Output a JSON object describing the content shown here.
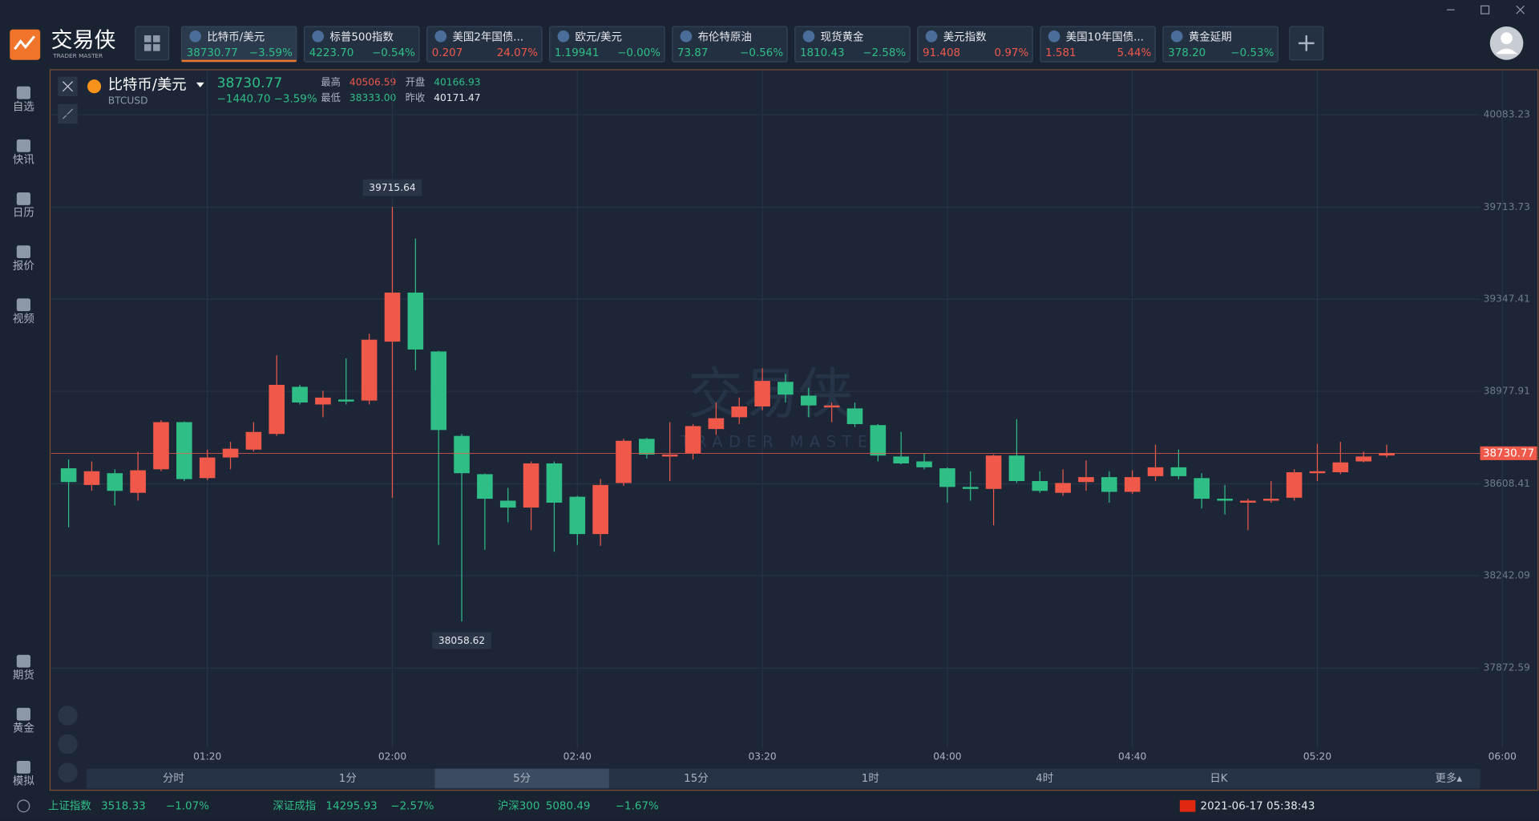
{
  "app": {
    "logo": "交易侠",
    "logo_sub": "TRADER MASTER"
  },
  "tickers": [
    {
      "name": "比特币/美元",
      "price": "38730.77",
      "change": "−3.59%",
      "color": "#2fbf86"
    },
    {
      "name": "标普500指数",
      "price": "4223.70",
      "change": "−0.54%",
      "color": "#2fbf86"
    },
    {
      "name": "美国2年国债...",
      "price": "0.207",
      "change": "24.07%",
      "color": "#f0584a"
    },
    {
      "name": "欧元/美元",
      "price": "1.19941",
      "change": "−0.00%",
      "color": "#2fbf86"
    },
    {
      "name": "布伦特原油",
      "price": "73.87",
      "change": "−0.56%",
      "color": "#2fbf86"
    },
    {
      "name": "现货黄金",
      "price": "1810.43",
      "change": "−2.58%",
      "color": "#2fbf86"
    },
    {
      "name": "美元指数",
      "price": "91.408",
      "change": "0.97%",
      "color": "#f0584a"
    },
    {
      "name": "美国10年国债...",
      "price": "1.581",
      "change": "5.44%",
      "color": "#f0584a"
    },
    {
      "name": "黄金延期",
      "price": "378.20",
      "change": "−0.53%",
      "color": "#2fbf86"
    }
  ],
  "sidebar_top": [
    "自选",
    "快讯",
    "日历",
    "报价",
    "视频"
  ],
  "sidebar_bottom": [
    "期货",
    "黄金",
    "模拟"
  ],
  "chart_header": {
    "name": "比特币/美元",
    "code": "BTCUSD",
    "price": "38730.77",
    "change": "−1440.70",
    "change_pct": "−3.59%",
    "stats": [
      {
        "label": "最高",
        "value": "40506.59",
        "color": "#f0584a"
      },
      {
        "label": "开盘",
        "value": "40166.93",
        "color": "#2fbf86"
      },
      {
        "label": "最低",
        "value": "38333.00",
        "color": "#2fbf86"
      },
      {
        "label": "昨收",
        "value": "40171.47",
        "color": "#e6e9ef"
      }
    ]
  },
  "chart_data": {
    "type": "candlestick",
    "watermark": "交易侠",
    "watermark_sub": "TRADER MASTER",
    "open": [
      38670.7,
      38604,
      38651.1,
      38572.7,
      38666.8,
      38855.1,
      38631.5,
      38713.9,
      38745.3,
      38808,
      38996.3,
      38925.7,
      38945.3,
      38941.4,
      39176.8,
      39372.9,
      39137.6,
      38800.2,
      38647.2,
      38541.3,
      38513.8,
      38690.3,
      38557,
      38407.9,
      38611.9,
      38788.4,
      38717.8,
      38729.6,
      38827.6,
      38874.7,
      38917.9,
      39016,
      38961,
      38914,
      38910,
      38843.3,
      38717.8,
      38698.2,
      38670.7,
      38596.2,
      38588.3,
      38721.7,
      38619.7,
      38572.7,
      38615.8,
      38635.4,
      38576.6,
      38639.3,
      38674.7,
      38631.5,
      38549.1,
      38533.4,
      38541.3,
      38553,
      38651.1,
      38655,
      38698.2,
      38721.7
    ],
    "high": [
      38706,
      38698.2,
      38666.8,
      38737.4,
      38863,
      38858,
      38745.3,
      38776.7,
      38855.1,
      39121.9,
      39004.2,
      38980.6,
      39110.1,
      39208.2,
      39715.64,
      39588.7,
      39140,
      38808,
      38650,
      38592.3,
      38698.2,
      38698.2,
      38561,
      38627.6,
      38788.4,
      38792.3,
      38855.1,
      38847.3,
      38933.6,
      38953.2,
      39070.9,
      39047.3,
      38992.4,
      38933.6,
      38933.6,
      38847.3,
      38815.9,
      38729.6,
      38674.7,
      38659,
      38725.7,
      38866.9,
      38659,
      38666.8,
      38702.1,
      38659,
      38662.9,
      38764.9,
      38745.3,
      38651.1,
      38604,
      38549.1,
      38619.7,
      38666.8,
      38768.8,
      38776.7,
      38737.4,
      38764.9
    ],
    "low": [
      38435.3,
      38580.5,
      38521.7,
      38541.3,
      38659,
      38619.7,
      38623.7,
      38666.8,
      38737.4,
      38800.2,
      38925.7,
      38874.7,
      38925.7,
      38925.7,
      38553,
      39063,
      38364.7,
      38058.62,
      38345.1,
      38455,
      38423.6,
      38337.3,
      38364.7,
      38360.8,
      38600.1,
      38710,
      38619.7,
      38706,
      38804.1,
      38847.3,
      38902.2,
      38933.6,
      38874.7,
      38855.1,
      38835.5,
      38698.2,
      38686.4,
      38666.8,
      38533.4,
      38541.3,
      38443.2,
      38611.9,
      38572.7,
      38560.9,
      38580.5,
      38533.4,
      38568.7,
      38619.7,
      38627.6,
      38509.9,
      38486.3,
      38423.6,
      38533.4,
      38541.3,
      38619.7,
      38647.2,
      38694.3,
      38713.9
    ],
    "close": [
      38615.8,
      38659,
      38580.5,
      38662.9,
      38855.1,
      38627.6,
      38713.9,
      38749.2,
      38815.9,
      39004.2,
      38933.6,
      38953.2,
      38937.5,
      39184.6,
      39372.9,
      39145.4,
      38823.7,
      38651.1,
      38549.1,
      38513.8,
      38690.3,
      38533.4,
      38407.9,
      38604,
      38780.6,
      38725.7,
      38725.7,
      38839.4,
      38870.8,
      38917.9,
      39019.9,
      38965,
      38921.8,
      38921.8,
      38847.3,
      38721.7,
      38690.3,
      38674.7,
      38596.2,
      38588.3,
      38721.7,
      38619.7,
      38580.5,
      38611.9,
      38635.4,
      38576.6,
      38635.4,
      38674.7,
      38639.3,
      38549.1,
      38541.3,
      38541.3,
      38549.1,
      38655,
      38659,
      38694.3,
      38717.8,
      38730.77
    ],
    "up_color": "#f0584a",
    "down_color": "#2fbf86",
    "ylim": [
      37552.7,
      40259.5
    ],
    "yticks": [
      40083.23,
      39713.73,
      39347.41,
      38977.91,
      38608.41,
      38242.09,
      37872.59
    ],
    "xlim": [
      -0.76,
      63.5
    ],
    "xticks": [
      {
        "value": 6,
        "label": "01:20"
      },
      {
        "value": 14,
        "label": "02:00"
      },
      {
        "value": 22,
        "label": "02:40"
      },
      {
        "value": 30,
        "label": "03:20"
      },
      {
        "value": 38,
        "label": "04:00"
      },
      {
        "value": 46,
        "label": "04:40"
      },
      {
        "value": 54,
        "label": "05:20"
      },
      {
        "value": 62,
        "label": "06:00"
      }
    ],
    "grid": true
  },
  "periods": [
    "分时",
    "1分",
    "5分",
    "15分",
    "1时",
    "4时",
    "日K",
    "更多▴"
  ],
  "active_period": 2,
  "status": {
    "indices": [
      {
        "name": "上证指数",
        "value": "3518.33",
        "change": "−1.07%"
      },
      {
        "name": "深证成指",
        "value": "14295.93",
        "change": "−2.57%"
      },
      {
        "name": "沪深300",
        "value": "5080.49",
        "change": "−1.67%"
      }
    ],
    "datetime": "2021-06-17 05:38:43"
  }
}
